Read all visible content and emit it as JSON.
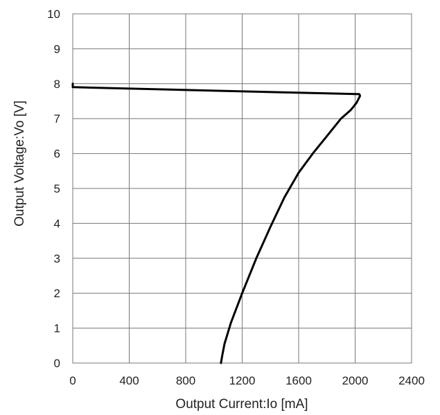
{
  "chart_data": {
    "type": "line",
    "title": "",
    "xlabel": "Output Current:Io [mA]",
    "ylabel": "Output Voltage:Vo  [V]",
    "xlim": [
      0,
      2400
    ],
    "ylim": [
      0,
      10
    ],
    "xticks": [
      0,
      400,
      800,
      1200,
      1600,
      2000,
      2400
    ],
    "yticks": [
      0,
      1,
      2,
      3,
      4,
      5,
      6,
      7,
      8,
      9,
      10
    ],
    "grid": true,
    "legend": "none",
    "series": [
      {
        "color": "#000000",
        "x": [
          0,
          0,
          1000,
          2030,
          2035,
          2010,
          1970,
          1900,
          1800,
          1700,
          1600,
          1500,
          1400,
          1300,
          1200,
          1120,
          1075,
          1058,
          1052,
          1050
        ],
        "y": [
          8.0,
          7.9,
          7.8,
          7.7,
          7.65,
          7.45,
          7.25,
          7.0,
          6.5,
          6.0,
          5.45,
          4.75,
          3.9,
          3.0,
          2.0,
          1.15,
          0.55,
          0.2,
          0.05,
          0.0
        ]
      }
    ]
  }
}
